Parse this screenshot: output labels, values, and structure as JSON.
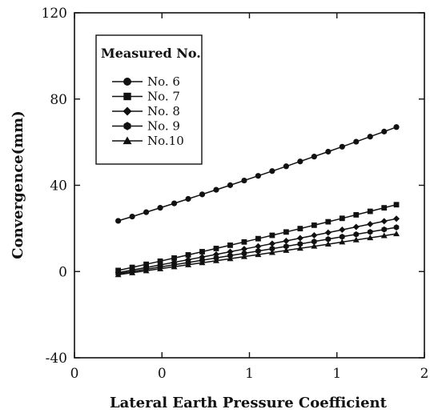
{
  "chart_data": {
    "type": "line",
    "xlabel": "Lateral Earth Pressure Coefficient",
    "ylabel": "Convergence(mm)",
    "xlim": [
      0,
      2
    ],
    "ylim": [
      -40,
      120
    ],
    "x_ticks": [
      0,
      0.5,
      1,
      1.5,
      2
    ],
    "x_tick_labels": [
      "0",
      "0",
      "1",
      "1",
      "2"
    ],
    "y_ticks": [
      -40,
      0,
      40,
      80,
      120
    ],
    "y_tick_labels": [
      "-40",
      "0",
      "40",
      "80",
      "120"
    ],
    "legend": {
      "title": "Measured No.",
      "placement": "top-left"
    },
    "grid": false,
    "x": [
      0.25,
      0.33,
      0.41,
      0.49,
      0.57,
      0.65,
      0.73,
      0.81,
      0.89,
      0.97,
      1.05,
      1.13,
      1.21,
      1.29,
      1.37,
      1.45,
      1.53,
      1.61,
      1.69,
      1.77,
      1.84
    ],
    "series": [
      {
        "name": "No. 6",
        "marker": "circle",
        "y_start": 23.5,
        "y_end": 67.0,
        "curve": 1.0
      },
      {
        "name": "No. 7",
        "marker": "square",
        "y_start": 0.5,
        "y_end": 31.0,
        "curve": 0.6
      },
      {
        "name": "No. 8",
        "marker": "diamond",
        "y_start": -0.5,
        "y_end": 24.5,
        "curve": 0.4
      },
      {
        "name": "No. 9",
        "marker": "hexagon",
        "y_start": -1.0,
        "y_end": 20.5,
        "curve": 0.3
      },
      {
        "name": "No.10",
        "marker": "triangle",
        "y_start": -1.5,
        "y_end": 17.5,
        "curve": 0.2
      }
    ]
  }
}
